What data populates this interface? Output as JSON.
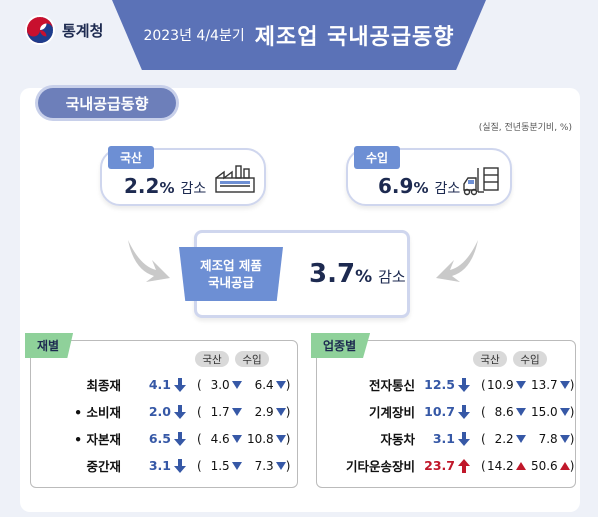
{
  "header": {
    "org": "통계청",
    "period": "2023년 4/4분기",
    "title": "제조업 국내공급동향"
  },
  "section": {
    "label": "국내공급동향",
    "unit_note": "(실질, 전년동분기비, %)"
  },
  "domestic": {
    "tag": "국산",
    "value": "2.2",
    "pct": "%",
    "change": "감소",
    "icon": "factory-icon"
  },
  "import": {
    "tag": "수입",
    "value": "6.9",
    "pct": "%",
    "change": "감소",
    "icon": "forklift-icon"
  },
  "total": {
    "tag_line1": "제조업 제품",
    "tag_line2": "국내공급",
    "value": "3.7",
    "pct": "%",
    "change": "감소"
  },
  "by_goods": {
    "tag": "재별",
    "col1": "국산",
    "col2": "수입",
    "rows": [
      {
        "name": "최종재",
        "value": "4.1",
        "dir": "down",
        "dom": "3.0",
        "dom_dir": "down",
        "imp": "6.4",
        "imp_dir": "down"
      },
      {
        "name": "• 소비재",
        "value": "2.0",
        "dir": "down",
        "dom": "1.7",
        "dom_dir": "down",
        "imp": "2.9",
        "imp_dir": "down"
      },
      {
        "name": "• 자본재",
        "value": "6.5",
        "dir": "down",
        "dom": "4.6",
        "dom_dir": "down",
        "imp": "10.8",
        "imp_dir": "down"
      },
      {
        "name": "중간재",
        "value": "3.1",
        "dir": "down",
        "dom": "1.5",
        "dom_dir": "down",
        "imp": "7.3",
        "imp_dir": "down"
      }
    ]
  },
  "by_industry": {
    "tag": "업종별",
    "col1": "국산",
    "col2": "수입",
    "rows": [
      {
        "name": "전자통신",
        "value": "12.5",
        "dir": "down",
        "dom": "10.9",
        "dom_dir": "down",
        "imp": "13.7",
        "imp_dir": "down"
      },
      {
        "name": "기계장비",
        "value": "10.7",
        "dir": "down",
        "dom": "8.6",
        "dom_dir": "down",
        "imp": "15.0",
        "imp_dir": "down"
      },
      {
        "name": "자동차",
        "value": "3.1",
        "dir": "down",
        "dom": "2.2",
        "dom_dir": "down",
        "imp": "7.8",
        "imp_dir": "down"
      },
      {
        "name": "기타운송장비",
        "value": "23.7",
        "dir": "up",
        "dom": "14.2",
        "dom_dir": "up",
        "imp": "50.6",
        "imp_dir": "up"
      }
    ]
  }
}
